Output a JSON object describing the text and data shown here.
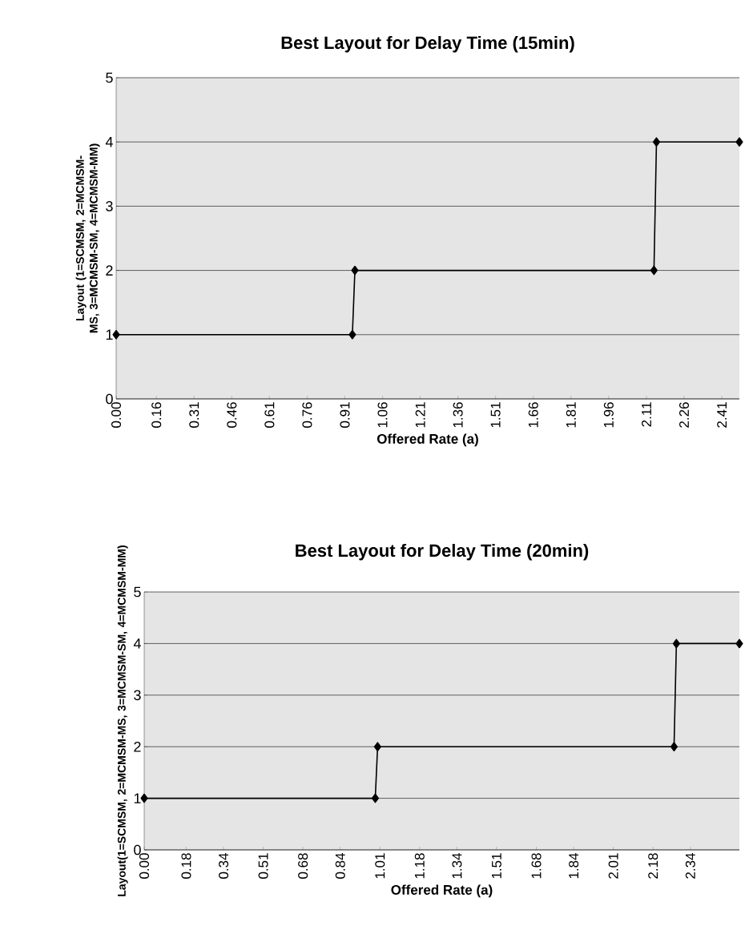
{
  "chart_data": [
    {
      "type": "line",
      "title": "Best Layout for Delay Time (15min)",
      "xlabel": "Offered Rate (a)",
      "ylabel": "Layout (1=SCMSM, 2=MCMSM-MS, 3=MCMSM-SM, 4=MCMSM-MM)",
      "x": [
        0,
        0.94,
        0.95,
        2.14,
        2.15,
        2.48
      ],
      "series": [
        {
          "color": "#000000",
          "values": [
            1,
            1,
            2,
            2,
            4,
            4
          ]
        }
      ],
      "xlim": [
        0,
        2.48
      ],
      "ylim": [
        0,
        5
      ],
      "xticks": [
        {
          "value": 0,
          "label": "0.00"
        },
        0.16,
        0.31,
        0.46,
        0.61,
        0.76,
        0.91,
        1.06,
        1.21,
        1.36,
        1.51,
        1.66,
        1.81,
        1.96,
        2.11,
        2.26,
        2.41
      ],
      "yticks": [
        0,
        1,
        2,
        3,
        4,
        5
      ],
      "grid": "y",
      "marker": "diamond"
    },
    {
      "type": "line",
      "title": "Best Layout for Delay Time (20min)",
      "xlabel": "Offered Rate (a)",
      "ylabel": "Layout(1=SCMSM, 2=MCMSM-MS, 3=MCMSM-SM, 4=MCMSM-MM)",
      "x": [
        0,
        0.99,
        1.0,
        2.27,
        2.28,
        2.55
      ],
      "series": [
        {
          "color": "#000000",
          "values": [
            1,
            1,
            2,
            2,
            4,
            4
          ]
        }
      ],
      "xlim": [
        0,
        2.55
      ],
      "ylim": [
        0,
        5
      ],
      "xticks": [
        {
          "value": 0,
          "label": "0.00"
        },
        0.18,
        0.34,
        0.51,
        0.68,
        0.84,
        1.01,
        1.18,
        1.34,
        1.51,
        1.68,
        1.84,
        2.01,
        2.18,
        2.34
      ],
      "yticks": [
        0,
        1,
        2,
        3,
        4,
        5
      ],
      "grid": "y",
      "marker": "diamond"
    }
  ]
}
